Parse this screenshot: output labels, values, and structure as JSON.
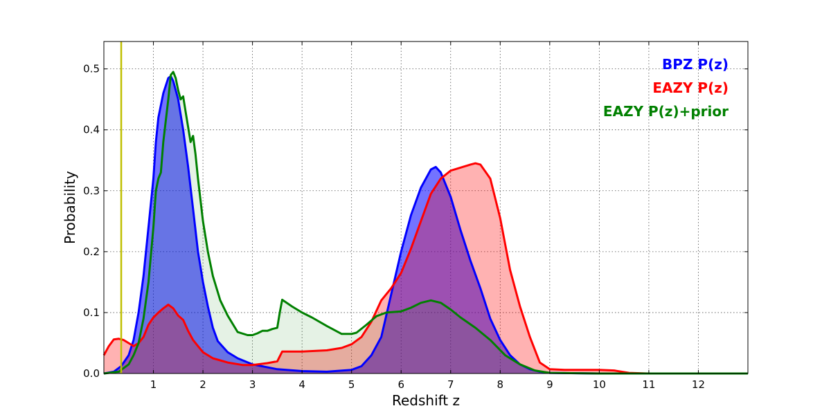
{
  "chart_data": {
    "type": "area",
    "title": "",
    "xlabel": "Redshift z",
    "ylabel": "Probability",
    "xlim": [
      0,
      13
    ],
    "ylim": [
      0,
      0.545
    ],
    "grid": true,
    "legend_position": "top-right",
    "x_ticks": [
      {
        "value": 1,
        "label": "1"
      },
      {
        "value": 2,
        "label": "2"
      },
      {
        "value": 3,
        "label": "3"
      },
      {
        "value": 4,
        "label": "4"
      },
      {
        "value": 5,
        "label": "5"
      },
      {
        "value": 6,
        "label": "6"
      },
      {
        "value": 7,
        "label": "7"
      },
      {
        "value": 8,
        "label": "8"
      },
      {
        "value": 9,
        "label": "9"
      },
      {
        "value": 10,
        "label": "10"
      },
      {
        "value": 11,
        "label": "11"
      },
      {
        "value": 12,
        "label": "12"
      }
    ],
    "y_ticks": [
      {
        "value": 0.0,
        "label": "0.0"
      },
      {
        "value": 0.1,
        "label": "0.1"
      },
      {
        "value": 0.2,
        "label": "0.2"
      },
      {
        "value": 0.3,
        "label": "0.3"
      },
      {
        "value": 0.4,
        "label": "0.4"
      },
      {
        "value": 0.5,
        "label": "0.5"
      }
    ],
    "vertical_line": {
      "x": 0.35,
      "color": "#bfbf00"
    },
    "series": [
      {
        "name": "BPZ P(z)",
        "color": "#0000ff",
        "fill": "#0000ff",
        "fill_opacity": 0.55,
        "points": [
          [
            0.0,
            0.0
          ],
          [
            0.2,
            0.003
          ],
          [
            0.35,
            0.012
          ],
          [
            0.5,
            0.03
          ],
          [
            0.6,
            0.055
          ],
          [
            0.7,
            0.1
          ],
          [
            0.8,
            0.16
          ],
          [
            0.9,
            0.24
          ],
          [
            1.0,
            0.32
          ],
          [
            1.05,
            0.38
          ],
          [
            1.1,
            0.42
          ],
          [
            1.2,
            0.46
          ],
          [
            1.3,
            0.485
          ],
          [
            1.35,
            0.488
          ],
          [
            1.4,
            0.48
          ],
          [
            1.5,
            0.45
          ],
          [
            1.6,
            0.4
          ],
          [
            1.7,
            0.34
          ],
          [
            1.8,
            0.27
          ],
          [
            1.9,
            0.2
          ],
          [
            2.0,
            0.15
          ],
          [
            2.1,
            0.11
          ],
          [
            2.2,
            0.075
          ],
          [
            2.3,
            0.053
          ],
          [
            2.5,
            0.035
          ],
          [
            2.7,
            0.025
          ],
          [
            3.0,
            0.015
          ],
          [
            3.5,
            0.007
          ],
          [
            4.0,
            0.004
          ],
          [
            4.5,
            0.003
          ],
          [
            5.0,
            0.006
          ],
          [
            5.2,
            0.012
          ],
          [
            5.4,
            0.03
          ],
          [
            5.6,
            0.06
          ],
          [
            5.8,
            0.13
          ],
          [
            6.0,
            0.2
          ],
          [
            6.2,
            0.26
          ],
          [
            6.4,
            0.305
          ],
          [
            6.6,
            0.335
          ],
          [
            6.7,
            0.339
          ],
          [
            6.8,
            0.33
          ],
          [
            7.0,
            0.29
          ],
          [
            7.2,
            0.235
          ],
          [
            7.4,
            0.185
          ],
          [
            7.6,
            0.14
          ],
          [
            7.8,
            0.09
          ],
          [
            8.0,
            0.055
          ],
          [
            8.2,
            0.03
          ],
          [
            8.4,
            0.015
          ],
          [
            8.6,
            0.007
          ],
          [
            8.8,
            0.003
          ],
          [
            9.0,
            0.001
          ],
          [
            10.0,
            0.0
          ],
          [
            13.0,
            0.0
          ]
        ]
      },
      {
        "name": "EAZY P(z)",
        "color": "#ff0000",
        "fill": "#ff0000",
        "fill_opacity": 0.3,
        "points": [
          [
            0.0,
            0.03
          ],
          [
            0.1,
            0.045
          ],
          [
            0.2,
            0.056
          ],
          [
            0.3,
            0.057
          ],
          [
            0.4,
            0.055
          ],
          [
            0.5,
            0.05
          ],
          [
            0.6,
            0.045
          ],
          [
            0.7,
            0.05
          ],
          [
            0.8,
            0.06
          ],
          [
            0.9,
            0.08
          ],
          [
            1.0,
            0.092
          ],
          [
            1.1,
            0.1
          ],
          [
            1.2,
            0.107
          ],
          [
            1.3,
            0.113
          ],
          [
            1.4,
            0.107
          ],
          [
            1.5,
            0.095
          ],
          [
            1.6,
            0.088
          ],
          [
            1.7,
            0.07
          ],
          [
            1.8,
            0.055
          ],
          [
            1.9,
            0.045
          ],
          [
            2.0,
            0.035
          ],
          [
            2.2,
            0.025
          ],
          [
            2.5,
            0.018
          ],
          [
            2.8,
            0.014
          ],
          [
            3.0,
            0.014
          ],
          [
            3.3,
            0.017
          ],
          [
            3.5,
            0.02
          ],
          [
            3.6,
            0.036
          ],
          [
            4.0,
            0.036
          ],
          [
            4.5,
            0.038
          ],
          [
            4.8,
            0.042
          ],
          [
            5.0,
            0.048
          ],
          [
            5.2,
            0.06
          ],
          [
            5.4,
            0.085
          ],
          [
            5.6,
            0.12
          ],
          [
            5.8,
            0.14
          ],
          [
            6.0,
            0.165
          ],
          [
            6.2,
            0.205
          ],
          [
            6.4,
            0.25
          ],
          [
            6.6,
            0.295
          ],
          [
            6.8,
            0.32
          ],
          [
            7.0,
            0.333
          ],
          [
            7.2,
            0.338
          ],
          [
            7.4,
            0.343
          ],
          [
            7.5,
            0.345
          ],
          [
            7.6,
            0.343
          ],
          [
            7.8,
            0.32
          ],
          [
            8.0,
            0.255
          ],
          [
            8.2,
            0.17
          ],
          [
            8.4,
            0.11
          ],
          [
            8.6,
            0.06
          ],
          [
            8.8,
            0.018
          ],
          [
            9.0,
            0.007
          ],
          [
            9.3,
            0.006
          ],
          [
            10.0,
            0.006
          ],
          [
            10.3,
            0.005
          ],
          [
            10.6,
            0.001
          ],
          [
            11.0,
            0.0
          ],
          [
            13.0,
            0.0
          ]
        ]
      },
      {
        "name": "EAZY P(z)+prior",
        "color": "#008000",
        "fill": "#008000",
        "fill_opacity": 0.1,
        "points": [
          [
            0.0,
            0.0
          ],
          [
            0.3,
            0.003
          ],
          [
            0.5,
            0.015
          ],
          [
            0.6,
            0.03
          ],
          [
            0.7,
            0.05
          ],
          [
            0.8,
            0.09
          ],
          [
            0.9,
            0.15
          ],
          [
            1.0,
            0.24
          ],
          [
            1.05,
            0.3
          ],
          [
            1.1,
            0.32
          ],
          [
            1.15,
            0.33
          ],
          [
            1.2,
            0.38
          ],
          [
            1.3,
            0.45
          ],
          [
            1.35,
            0.49
          ],
          [
            1.4,
            0.495
          ],
          [
            1.45,
            0.485
          ],
          [
            1.5,
            0.465
          ],
          [
            1.55,
            0.45
          ],
          [
            1.6,
            0.455
          ],
          [
            1.65,
            0.43
          ],
          [
            1.7,
            0.405
          ],
          [
            1.75,
            0.38
          ],
          [
            1.8,
            0.39
          ],
          [
            1.85,
            0.36
          ],
          [
            1.9,
            0.32
          ],
          [
            2.0,
            0.25
          ],
          [
            2.1,
            0.2
          ],
          [
            2.2,
            0.16
          ],
          [
            2.35,
            0.12
          ],
          [
            2.5,
            0.095
          ],
          [
            2.7,
            0.068
          ],
          [
            2.9,
            0.063
          ],
          [
            3.0,
            0.063
          ],
          [
            3.1,
            0.066
          ],
          [
            3.2,
            0.07
          ],
          [
            3.3,
            0.07
          ],
          [
            3.4,
            0.073
          ],
          [
            3.5,
            0.075
          ],
          [
            3.55,
            0.1
          ],
          [
            3.6,
            0.121
          ],
          [
            3.8,
            0.11
          ],
          [
            4.0,
            0.1
          ],
          [
            4.2,
            0.092
          ],
          [
            4.5,
            0.078
          ],
          [
            4.8,
            0.065
          ],
          [
            5.0,
            0.065
          ],
          [
            5.1,
            0.067
          ],
          [
            5.3,
            0.08
          ],
          [
            5.5,
            0.094
          ],
          [
            5.7,
            0.1
          ],
          [
            6.0,
            0.102
          ],
          [
            6.2,
            0.108
          ],
          [
            6.4,
            0.116
          ],
          [
            6.6,
            0.12
          ],
          [
            6.8,
            0.116
          ],
          [
            7.0,
            0.105
          ],
          [
            7.2,
            0.092
          ],
          [
            7.5,
            0.075
          ],
          [
            7.8,
            0.055
          ],
          [
            8.1,
            0.03
          ],
          [
            8.4,
            0.015
          ],
          [
            8.7,
            0.005
          ],
          [
            9.0,
            0.001
          ],
          [
            10.0,
            0.0
          ],
          [
            13.0,
            0.0
          ]
        ]
      }
    ]
  }
}
